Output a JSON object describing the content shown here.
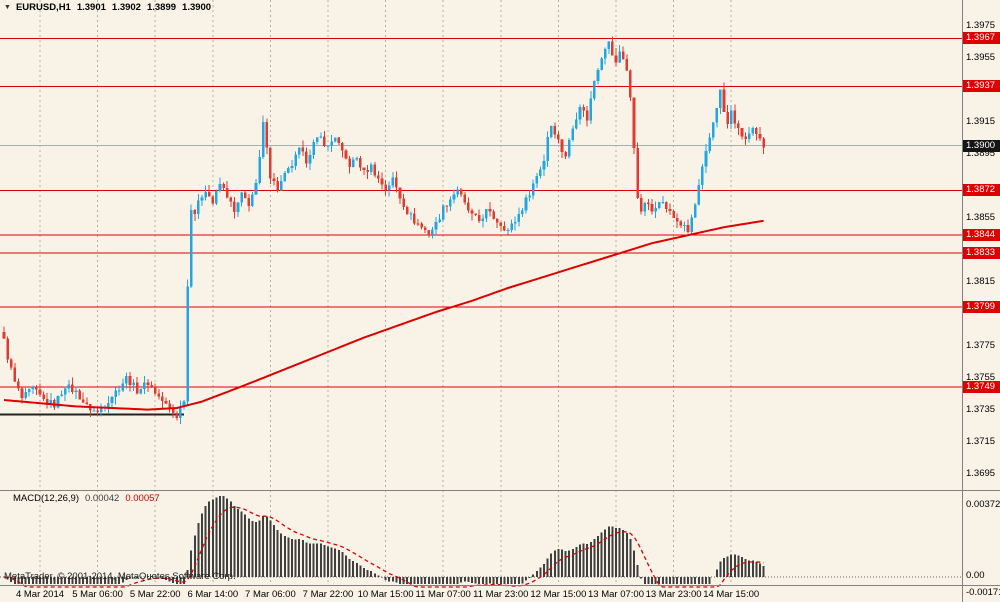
{
  "header": {
    "marker": "▼",
    "symbol": "EURUSD,H1",
    "open": "1.3901",
    "high": "1.3902",
    "low": "1.3899",
    "close": "1.3900"
  },
  "macd_panel": {
    "title": "MACD(12,26,9)",
    "value_main": "0.00042",
    "value_signal": "0.00057",
    "axis_labels": [
      "0.00372",
      "0.00",
      "-0.00171"
    ]
  },
  "footer": {
    "credit": "MetaTrader, © 2001-2014, MetaQuotes Software Corp."
  },
  "colors": {
    "background": "#f8f3e6",
    "bull": "#1fa6e4",
    "bear": "#e13b30",
    "level": "#dd0000",
    "ma": "#dd0000",
    "grid": "#b7b1a2",
    "histogram": "#3f3f3f",
    "signal": "#dd0000",
    "zero_line": "#666666",
    "current_price_line": "#9fb0c0",
    "border": "#808080",
    "support_segment": "#222222"
  },
  "chart_data": {
    "type": "candlestick",
    "title": "EURUSD,H1",
    "symbol": "EURUSD",
    "timeframe": "H1",
    "ylim": [
      1.368475,
      1.3991
    ],
    "grid": "vertical-dashed",
    "legend_position": "none",
    "price_ticks": [
      1.3975,
      1.3955,
      1.3915,
      1.3895,
      1.3855,
      1.3815,
      1.3775,
      1.3755,
      1.3735,
      1.3715,
      1.3695
    ],
    "levels": [
      1.3967,
      1.3937,
      1.3872,
      1.3844,
      1.3833,
      1.3799,
      1.3749
    ],
    "current_price": 1.39,
    "bars_total": 212,
    "volatility": 0.00022,
    "time_labels": [
      {
        "bar": 10,
        "label": "4 Mar 2014"
      },
      {
        "bar": 26,
        "label": "5 Mar 06:00"
      },
      {
        "bar": 42,
        "label": "5 Mar 22:00"
      },
      {
        "bar": 58,
        "label": "6 Mar 14:00"
      },
      {
        "bar": 74,
        "label": "7 Mar 06:00"
      },
      {
        "bar": 90,
        "label": "7 Mar 22:00"
      },
      {
        "bar": 106,
        "label": "10 Mar 15:00"
      },
      {
        "bar": 122,
        "label": "11 Mar 07:00"
      },
      {
        "bar": 138,
        "label": "11 Mar 23:00"
      },
      {
        "bar": 154,
        "label": "12 Mar 15:00"
      },
      {
        "bar": 170,
        "label": "13 Mar 07:00"
      },
      {
        "bar": 186,
        "label": "13 Mar 23:00"
      },
      {
        "bar": 202,
        "label": "14 Mar 15:00"
      }
    ],
    "price_path": [
      [
        0,
        1.3778
      ],
      [
        1,
        1.3768
      ],
      [
        3,
        1.3752
      ],
      [
        5,
        1.3742
      ],
      [
        8,
        1.3748
      ],
      [
        11,
        1.3741
      ],
      [
        14,
        1.3738
      ],
      [
        17,
        1.375
      ],
      [
        20,
        1.3746
      ],
      [
        23,
        1.3737
      ],
      [
        26,
        1.3733
      ],
      [
        29,
        1.3741
      ],
      [
        32,
        1.3749
      ],
      [
        34,
        1.3755
      ],
      [
        37,
        1.3747
      ],
      [
        40,
        1.3752
      ],
      [
        43,
        1.3743
      ],
      [
        46,
        1.3735
      ],
      [
        48,
        1.3731
      ],
      [
        50,
        1.3742
      ],
      [
        51,
        1.3812
      ],
      [
        52,
        1.3862
      ],
      [
        53,
        1.3858
      ],
      [
        55,
        1.3869
      ],
      [
        56,
        1.3873
      ],
      [
        58,
        1.3864
      ],
      [
        60,
        1.3876
      ],
      [
        62,
        1.3869
      ],
      [
        64,
        1.3858
      ],
      [
        66,
        1.3869
      ],
      [
        68,
        1.3864
      ],
      [
        70,
        1.3875
      ],
      [
        71,
        1.3892
      ],
      [
        72,
        1.3913
      ],
      [
        73,
        1.3901
      ],
      [
        74,
        1.3881
      ],
      [
        76,
        1.3873
      ],
      [
        78,
        1.3881
      ],
      [
        80,
        1.3888
      ],
      [
        82,
        1.3897
      ],
      [
        84,
        1.3891
      ],
      [
        86,
        1.3901
      ],
      [
        88,
        1.3905
      ],
      [
        90,
        1.3899
      ],
      [
        92,
        1.3906
      ],
      [
        94,
        1.3895
      ],
      [
        96,
        1.3888
      ],
      [
        98,
        1.3892
      ],
      [
        100,
        1.3883
      ],
      [
        102,
        1.3887
      ],
      [
        104,
        1.3879
      ],
      [
        106,
        1.3873
      ],
      [
        108,
        1.3879
      ],
      [
        110,
        1.3868
      ],
      [
        112,
        1.3859
      ],
      [
        114,
        1.3853
      ],
      [
        116,
        1.3849
      ],
      [
        118,
        1.3845
      ],
      [
        120,
        1.3851
      ],
      [
        122,
        1.3861
      ],
      [
        124,
        1.3867
      ],
      [
        126,
        1.3873
      ],
      [
        128,
        1.3863
      ],
      [
        130,
        1.3856
      ],
      [
        132,
        1.3853
      ],
      [
        134,
        1.3859
      ],
      [
        136,
        1.3855
      ],
      [
        138,
        1.3851
      ],
      [
        140,
        1.3847
      ],
      [
        142,
        1.3853
      ],
      [
        144,
        1.3861
      ],
      [
        146,
        1.3871
      ],
      [
        148,
        1.3881
      ],
      [
        150,
        1.3891
      ],
      [
        151,
        1.3906
      ],
      [
        152,
        1.3913
      ],
      [
        153,
        1.3909
      ],
      [
        154,
        1.3903
      ],
      [
        155,
        1.3897
      ],
      [
        156,
        1.3894
      ],
      [
        158,
        1.3911
      ],
      [
        160,
        1.3926
      ],
      [
        161,
        1.3921
      ],
      [
        162,
        1.3917
      ],
      [
        163,
        1.3929
      ],
      [
        164,
        1.3941
      ],
      [
        165,
        1.3949
      ],
      [
        166,
        1.3956
      ],
      [
        167,
        1.3962
      ],
      [
        168,
        1.3964
      ],
      [
        169,
        1.3957
      ],
      [
        170,
        1.3951
      ],
      [
        171,
        1.3959
      ],
      [
        172,
        1.3955
      ],
      [
        173,
        1.3947
      ],
      [
        174,
        1.3929
      ],
      [
        175,
        1.3899
      ],
      [
        176,
        1.3869
      ],
      [
        177,
        1.3857
      ],
      [
        178,
        1.3865
      ],
      [
        180,
        1.3859
      ],
      [
        182,
        1.3867
      ],
      [
        184,
        1.3861
      ],
      [
        186,
        1.3855
      ],
      [
        188,
        1.3851
      ],
      [
        190,
        1.3846
      ],
      [
        192,
        1.3863
      ],
      [
        194,
        1.3885
      ],
      [
        196,
        1.3905
      ],
      [
        198,
        1.3925
      ],
      [
        199,
        1.3934
      ],
      [
        200,
        1.3921
      ],
      [
        201,
        1.3913
      ],
      [
        202,
        1.3921
      ],
      [
        204,
        1.3909
      ],
      [
        206,
        1.3904
      ],
      [
        208,
        1.3909
      ],
      [
        210,
        1.3903
      ],
      [
        211,
        1.39
      ]
    ],
    "ma_line": [
      [
        0,
        1.3741
      ],
      [
        10,
        1.3739
      ],
      [
        20,
        1.3737
      ],
      [
        30,
        1.3736
      ],
      [
        40,
        1.3735
      ],
      [
        48,
        1.3736
      ],
      [
        55,
        1.374
      ],
      [
        62,
        1.3746
      ],
      [
        70,
        1.3753
      ],
      [
        80,
        1.3762
      ],
      [
        90,
        1.3771
      ],
      [
        100,
        1.378
      ],
      [
        110,
        1.3788
      ],
      [
        120,
        1.3796
      ],
      [
        130,
        1.3803
      ],
      [
        140,
        1.3811
      ],
      [
        150,
        1.3818
      ],
      [
        160,
        1.3825
      ],
      [
        170,
        1.3832
      ],
      [
        180,
        1.3839
      ],
      [
        190,
        1.3844
      ],
      [
        200,
        1.3849
      ],
      [
        211,
        1.3853
      ]
    ],
    "support_segment": {
      "price": 1.3732,
      "from_bar": 0,
      "to_bar": 50
    },
    "macd": {
      "fast": 12,
      "slow": 26,
      "signal": 9
    }
  }
}
